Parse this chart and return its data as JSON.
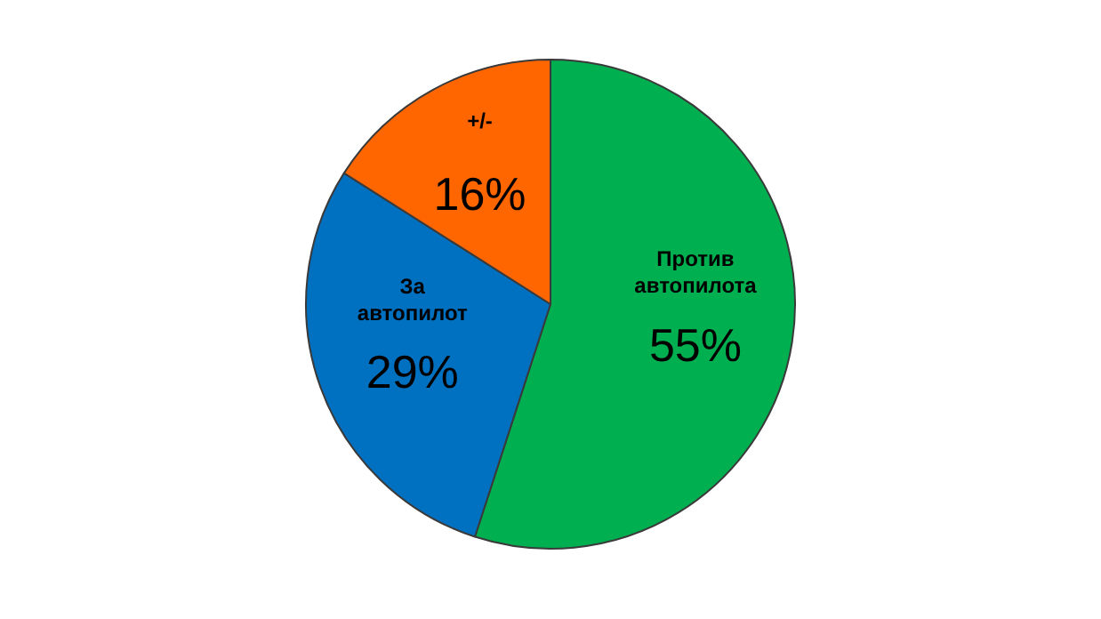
{
  "chart_data": {
    "type": "pie",
    "categories": [
      "Против автопилота",
      "За автопилот",
      "+/-"
    ],
    "values": [
      55,
      29,
      16
    ],
    "colors": [
      "#00b050",
      "#0070c0",
      "#ff6600"
    ],
    "value_labels": [
      "55%",
      "29%",
      "16%"
    ],
    "legend": false
  }
}
